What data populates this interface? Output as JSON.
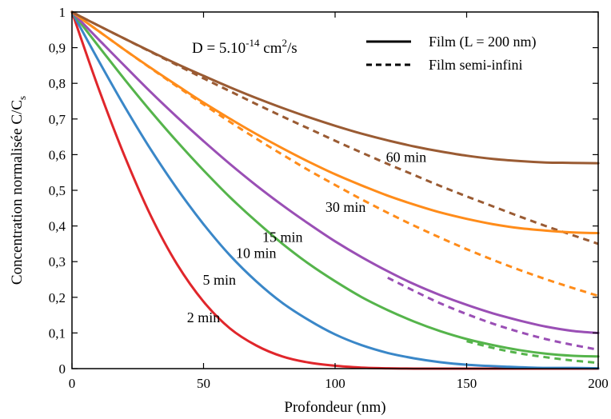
{
  "chart_data": {
    "type": "line",
    "xlabel": "Profondeur (nm)",
    "ylabel": "Concentration normalisée C/C",
    "ylabel_sub": "s",
    "xlim": [
      0,
      200
    ],
    "ylim": [
      0,
      1
    ],
    "x_ticks": [
      "0",
      "50",
      "100",
      "150",
      "200"
    ],
    "y_ticks": [
      "0",
      "0,1",
      "0,2",
      "0,3",
      "0,4",
      "0,5",
      "0,6",
      "0,7",
      "0,8",
      "0,9",
      "1"
    ],
    "annotation": {
      "prefix": "D = 5.10",
      "exponent": "-14",
      "unit": "cm",
      "unit_exp": "2",
      "suffix": "/s"
    },
    "legend": {
      "solid": "Film (L = 200 nm)",
      "dashed": "Film semi-infini",
      "placement": "top-right"
    },
    "grid": false,
    "colors": {
      "2min": "#e0262b",
      "5min": "#3a87c8",
      "10min": "#55b44b",
      "15min": "#9a4fb5",
      "30min": "#ff8c1a",
      "60min": "#9a5b33"
    },
    "series": [
      {
        "name": "2 min",
        "color_key": "2min",
        "style": "solid",
        "x": [
          0,
          10,
          20,
          30,
          40,
          50,
          60,
          70,
          80,
          90,
          100,
          110,
          120,
          130,
          140,
          150,
          160,
          170,
          180,
          190,
          200
        ],
        "y": [
          1.0,
          0.788,
          0.596,
          0.428,
          0.292,
          0.188,
          0.113,
          0.065,
          0.034,
          0.017,
          0.008,
          0.003,
          0.001,
          0.0,
          0.0,
          0.0,
          0.0,
          0.0,
          0.0,
          0.0,
          0.0
        ]
      },
      {
        "name": "5 min",
        "color_key": "5min",
        "style": "solid",
        "x": [
          0,
          10,
          20,
          30,
          40,
          50,
          60,
          70,
          80,
          90,
          100,
          110,
          120,
          130,
          140,
          150,
          160,
          170,
          180,
          190,
          200
        ],
        "y": [
          1.0,
          0.865,
          0.735,
          0.614,
          0.504,
          0.405,
          0.318,
          0.245,
          0.184,
          0.136,
          0.096,
          0.066,
          0.044,
          0.029,
          0.018,
          0.011,
          0.007,
          0.004,
          0.002,
          0.002,
          0.001
        ]
      },
      {
        "name": "10 min",
        "color_key": "10min",
        "style": "solid",
        "x": [
          0,
          10,
          20,
          30,
          40,
          50,
          60,
          70,
          80,
          90,
          100,
          110,
          120,
          130,
          140,
          150,
          160,
          170,
          180,
          190,
          200
        ],
        "y": [
          1.0,
          0.905,
          0.811,
          0.721,
          0.636,
          0.556,
          0.481,
          0.413,
          0.35,
          0.294,
          0.245,
          0.201,
          0.164,
          0.132,
          0.105,
          0.083,
          0.066,
          0.052,
          0.042,
          0.036,
          0.034
        ]
      },
      {
        "name": "10 min",
        "color_key": "10min",
        "style": "dashed",
        "x": [
          150,
          160,
          170,
          180,
          190,
          200
        ],
        "y": [
          0.077,
          0.058,
          0.043,
          0.032,
          0.023,
          0.016
        ]
      },
      {
        "name": "15 min",
        "color_key": "15min",
        "style": "solid",
        "x": [
          0,
          10,
          20,
          30,
          40,
          50,
          60,
          70,
          80,
          90,
          100,
          110,
          120,
          130,
          140,
          150,
          160,
          170,
          180,
          190,
          200
        ],
        "y": [
          1.0,
          0.924,
          0.849,
          0.775,
          0.705,
          0.638,
          0.574,
          0.514,
          0.458,
          0.406,
          0.357,
          0.313,
          0.273,
          0.237,
          0.206,
          0.179,
          0.155,
          0.135,
          0.118,
          0.106,
          0.1
        ]
      },
      {
        "name": "15 min",
        "color_key": "15min",
        "style": "dashed",
        "x": [
          120,
          130,
          140,
          150,
          160,
          170,
          180,
          190,
          200
        ],
        "y": [
          0.255,
          0.218,
          0.183,
          0.153,
          0.126,
          0.103,
          0.083,
          0.067,
          0.053
        ]
      },
      {
        "name": "30 min",
        "color_key": "30min",
        "style": "solid",
        "x": [
          0,
          10,
          20,
          30,
          40,
          50,
          60,
          70,
          80,
          90,
          100,
          110,
          120,
          130,
          140,
          150,
          160,
          170,
          180,
          190,
          200
        ],
        "y": [
          1.0,
          0.947,
          0.894,
          0.843,
          0.794,
          0.746,
          0.701,
          0.658,
          0.618,
          0.58,
          0.545,
          0.514,
          0.485,
          0.46,
          0.438,
          0.42,
          0.405,
          0.394,
          0.387,
          0.382,
          0.38
        ]
      },
      {
        "name": "30 min",
        "color_key": "30min",
        "style": "dashed",
        "x": [
          0,
          10,
          20,
          30,
          40,
          50,
          60,
          70,
          80,
          90,
          100,
          110,
          120,
          130,
          140,
          150,
          160,
          170,
          180,
          190,
          200
        ],
        "y": [
          1.0,
          0.947,
          0.894,
          0.842,
          0.791,
          0.741,
          0.692,
          0.645,
          0.6,
          0.556,
          0.515,
          0.475,
          0.437,
          0.401,
          0.367,
          0.335,
          0.305,
          0.277,
          0.251,
          0.227,
          0.204
        ]
      },
      {
        "name": "60 min",
        "color_key": "60min",
        "style": "solid",
        "x": [
          0,
          10,
          20,
          30,
          40,
          50,
          60,
          70,
          80,
          90,
          100,
          110,
          120,
          130,
          140,
          150,
          160,
          170,
          180,
          190,
          200
        ],
        "y": [
          1.0,
          0.962,
          0.925,
          0.889,
          0.854,
          0.821,
          0.789,
          0.759,
          0.731,
          0.705,
          0.681,
          0.659,
          0.64,
          0.623,
          0.609,
          0.597,
          0.588,
          0.582,
          0.578,
          0.577,
          0.576
        ]
      },
      {
        "name": "60 min",
        "color_key": "60min",
        "style": "dashed",
        "x": [
          0,
          10,
          20,
          30,
          40,
          50,
          60,
          70,
          80,
          90,
          100,
          110,
          120,
          130,
          140,
          150,
          160,
          170,
          180,
          190,
          200
        ],
        "y": [
          1.0,
          0.962,
          0.925,
          0.888,
          0.851,
          0.814,
          0.778,
          0.742,
          0.707,
          0.673,
          0.639,
          0.606,
          0.574,
          0.543,
          0.512,
          0.483,
          0.455,
          0.427,
          0.4,
          0.375,
          0.35
        ]
      }
    ],
    "curve_labels": [
      {
        "text": "2 min",
        "x": 50,
        "y": 0.13
      },
      {
        "text": "5 min",
        "x": 56,
        "y": 0.235
      },
      {
        "text": "10 min",
        "x": 70,
        "y": 0.31
      },
      {
        "text": "15 min",
        "x": 80,
        "y": 0.355
      },
      {
        "text": "30 min",
        "x": 104,
        "y": 0.44
      },
      {
        "text": "60 min",
        "x": 127,
        "y": 0.58
      }
    ]
  }
}
